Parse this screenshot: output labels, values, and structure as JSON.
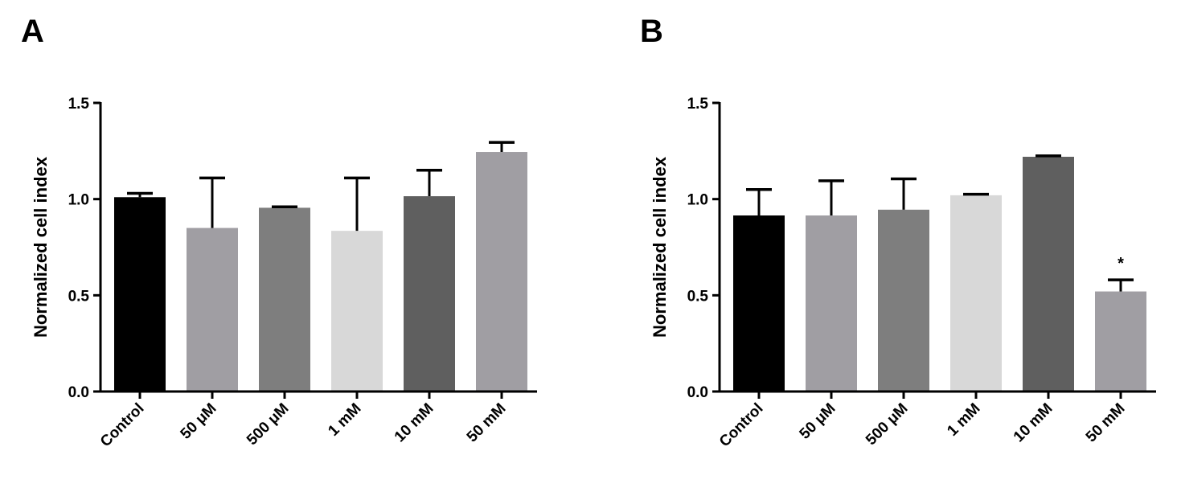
{
  "chart_data": [
    {
      "panel": "A",
      "type": "bar",
      "title": "",
      "xlabel": "",
      "ylabel": "Normalized cell index",
      "ylim": [
        0,
        1.5
      ],
      "yticks": [
        "0.0",
        "0.5",
        "1.0",
        "1.5"
      ],
      "categories": [
        "Control",
        "50 μM",
        "500 μM",
        "1 mM",
        "10 mM",
        "50 mM"
      ],
      "values": [
        1.01,
        0.85,
        0.955,
        0.835,
        1.015,
        1.245
      ],
      "error_upper": [
        0.02,
        0.26,
        0.005,
        0.275,
        0.135,
        0.05
      ],
      "colors": [
        "#000000",
        "#a09ea3",
        "#7e7e7e",
        "#d8d8d8",
        "#5f5f5f",
        "#a09ea3"
      ],
      "annotations": [
        "",
        "",
        "",
        "",
        "",
        ""
      ],
      "grid": false
    },
    {
      "panel": "B",
      "type": "bar",
      "title": "",
      "xlabel": "",
      "ylabel": "Normalized cell index",
      "ylim": [
        0,
        1.5
      ],
      "yticks": [
        "0.0",
        "0.5",
        "1.0",
        "1.5"
      ],
      "categories": [
        "Control",
        "50 μM",
        "500 μM",
        "1 mM",
        "10 mM",
        "50 mM"
      ],
      "values": [
        0.915,
        0.915,
        0.945,
        1.02,
        1.22,
        0.52
      ],
      "error_upper": [
        0.135,
        0.18,
        0.16,
        0.005,
        0.005,
        0.06
      ],
      "colors": [
        "#000000",
        "#a09ea3",
        "#7e7e7e",
        "#d8d8d8",
        "#5f5f5f",
        "#a09ea3"
      ],
      "annotations": [
        "",
        "",
        "",
        "",
        "",
        "*"
      ],
      "grid": false
    }
  ]
}
